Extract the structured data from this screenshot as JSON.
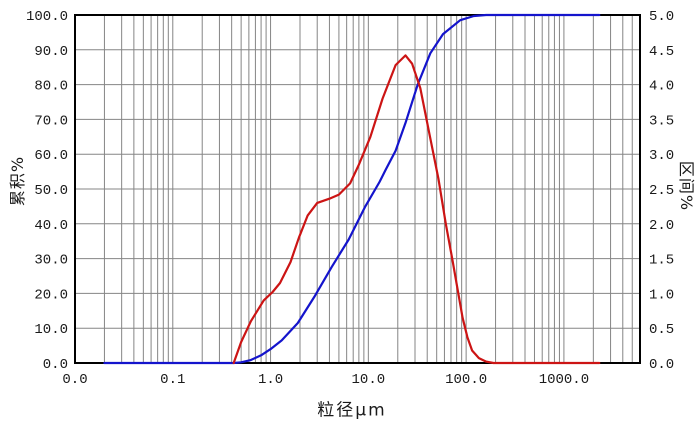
{
  "chart_data": {
    "type": "line",
    "title": "",
    "x_axis": {
      "label": "粒径μm",
      "scale": "log",
      "min": 0.01,
      "max": 6000,
      "ticks": [
        {
          "value": 0.01,
          "label": "0.0"
        },
        {
          "value": 0.1,
          "label": "0.1"
        },
        {
          "value": 1,
          "label": "1.0"
        },
        {
          "value": 10,
          "label": "10.0"
        },
        {
          "value": 100,
          "label": "100.0"
        },
        {
          "value": 1000,
          "label": "1000.0"
        }
      ]
    },
    "y_left_axis": {
      "label": "累积%",
      "min": 0,
      "max": 100,
      "ticks": [
        {
          "value": 100,
          "label": "100.0"
        },
        {
          "value": 90,
          "label": "90.0"
        },
        {
          "value": 80,
          "label": "80.0"
        },
        {
          "value": 70,
          "label": "70.0"
        },
        {
          "value": 60,
          "label": "60.0"
        },
        {
          "value": 50,
          "label": "50.0"
        },
        {
          "value": 40,
          "label": "40.0"
        },
        {
          "value": 30,
          "label": "30.0"
        },
        {
          "value": 20,
          "label": "20.0"
        },
        {
          "value": 10,
          "label": "10.0"
        },
        {
          "value": 0,
          "label": "0.0"
        }
      ]
    },
    "y_right_axis": {
      "label": "区间%",
      "min": 0,
      "max": 5,
      "ticks": [
        {
          "value": 5.0,
          "label": "5.0"
        },
        {
          "value": 4.5,
          "label": "4.5"
        },
        {
          "value": 4.0,
          "label": "4.0"
        },
        {
          "value": 3.5,
          "label": "3.5"
        },
        {
          "value": 3.0,
          "label": "3.0"
        },
        {
          "value": 2.5,
          "label": "2.5"
        },
        {
          "value": 2.0,
          "label": "2.0"
        },
        {
          "value": 1.5,
          "label": "1.5"
        },
        {
          "value": 1.0,
          "label": "1.0"
        },
        {
          "value": 0.5,
          "label": "0.5"
        },
        {
          "value": 0.0,
          "label": "0.0"
        }
      ]
    },
    "grid": {
      "on": true,
      "color": "#858585",
      "border_color": "#000000"
    },
    "legend": {
      "visible": false
    },
    "series": [
      {
        "name": "cumulative-percent",
        "axis": "left",
        "color": "#1414cc",
        "points": [
          [
            0.02,
            0
          ],
          [
            0.3,
            0
          ],
          [
            0.42,
            0
          ],
          [
            0.5,
            0.2
          ],
          [
            0.62,
            0.8
          ],
          [
            0.8,
            2.2
          ],
          [
            1.0,
            4.0
          ],
          [
            1.3,
            6.5
          ],
          [
            1.9,
            11.5
          ],
          [
            2.8,
            19.0
          ],
          [
            4.2,
            27.5
          ],
          [
            6.3,
            35.5
          ],
          [
            9.3,
            45.0
          ],
          [
            13,
            52.0
          ],
          [
            15,
            55.5
          ],
          [
            19,
            61.0
          ],
          [
            24,
            69.0
          ],
          [
            32,
            80.0
          ],
          [
            43,
            89.0
          ],
          [
            58,
            94.5
          ],
          [
            87,
            98.5
          ],
          [
            120,
            99.7
          ],
          [
            160,
            100
          ],
          [
            2300,
            100
          ]
        ]
      },
      {
        "name": "interval-percent",
        "axis": "right",
        "color": "#cc1414",
        "points": [
          [
            0.42,
            0
          ],
          [
            0.5,
            0.3
          ],
          [
            0.63,
            0.6
          ],
          [
            0.85,
            0.9
          ],
          [
            1.05,
            1.02
          ],
          [
            1.25,
            1.15
          ],
          [
            1.6,
            1.45
          ],
          [
            1.95,
            1.8
          ],
          [
            2.4,
            2.12
          ],
          [
            3.0,
            2.3
          ],
          [
            4.0,
            2.36
          ],
          [
            5.0,
            2.42
          ],
          [
            6.5,
            2.58
          ],
          [
            8.0,
            2.85
          ],
          [
            10.5,
            3.25
          ],
          [
            14,
            3.8
          ],
          [
            19,
            4.28
          ],
          [
            24,
            4.42
          ],
          [
            28,
            4.3
          ],
          [
            34,
            3.95
          ],
          [
            42,
            3.3
          ],
          [
            52,
            2.65
          ],
          [
            62,
            2.0
          ],
          [
            72,
            1.5
          ],
          [
            82,
            1.05
          ],
          [
            92,
            0.65
          ],
          [
            103,
            0.37
          ],
          [
            115,
            0.18
          ],
          [
            135,
            0.07
          ],
          [
            160,
            0.02
          ],
          [
            190,
            0
          ],
          [
            2300,
            0
          ]
        ]
      }
    ]
  }
}
